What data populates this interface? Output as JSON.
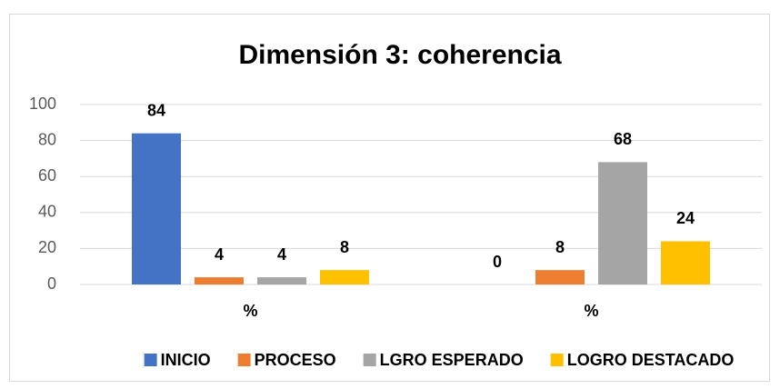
{
  "chart_data": {
    "type": "bar",
    "title": "Dimensión 3: coherencia",
    "categories": [
      "%",
      "%"
    ],
    "series": [
      {
        "name": "INICIO",
        "color": "#4472c4",
        "values": [
          84,
          0
        ]
      },
      {
        "name": "PROCESO",
        "color": "#ed7d31",
        "values": [
          4,
          8
        ]
      },
      {
        "name": "LGRO ESPERADO",
        "color": "#a5a5a5",
        "values": [
          4,
          68
        ]
      },
      {
        "name": "LOGRO DESTACADO",
        "color": "#ffc000",
        "values": [
          8,
          24
        ]
      }
    ],
    "ylim": [
      0,
      100
    ],
    "yticks": [
      0,
      20,
      40,
      60,
      80,
      100
    ],
    "grid": true,
    "legend": "bottom"
  }
}
